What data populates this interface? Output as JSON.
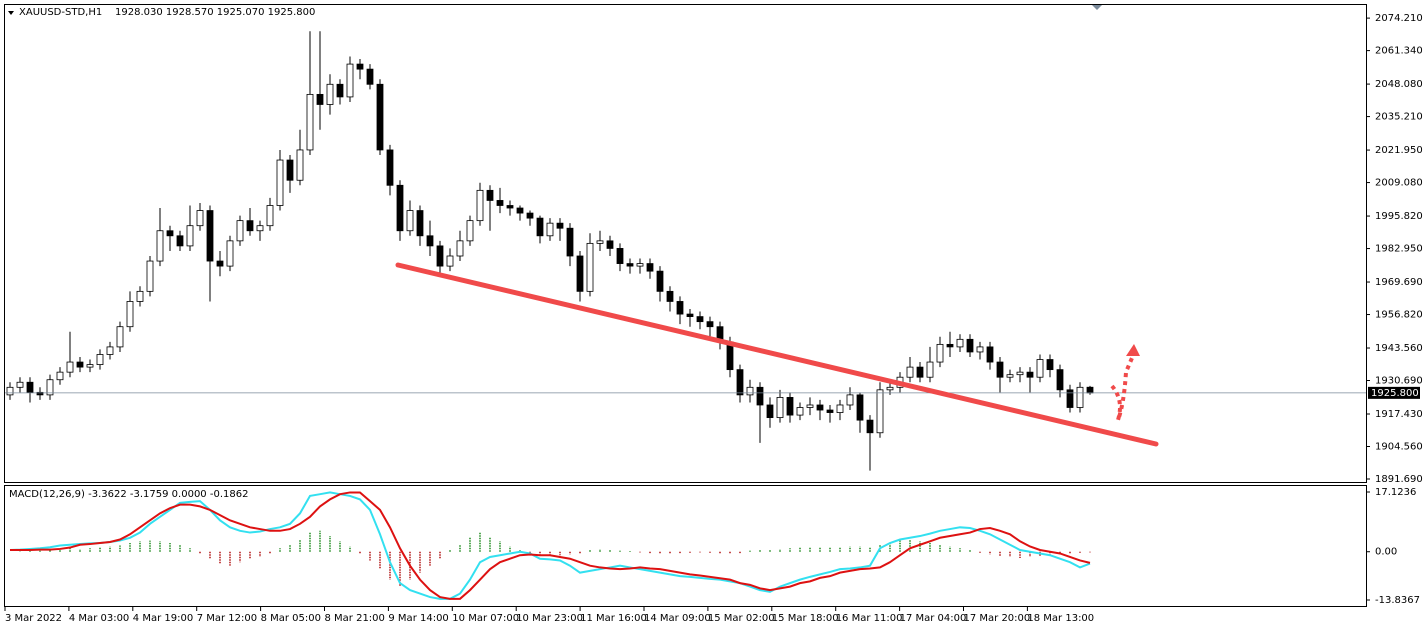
{
  "chart_data": [
    {
      "type": "candlestick",
      "header": {
        "symbol": "XAUUSD-STD,H1",
        "values": "1928.030 1928.570 1925.070 1925.800"
      },
      "categories": [
        "3 Mar 2022",
        "4 Mar 03:00",
        "4 Mar 19:00",
        "7 Mar 12:00",
        "8 Mar 05:00",
        "8 Mar 21:00",
        "9 Mar 14:00",
        "10 Mar 07:00",
        "10 Mar 23:00",
        "11 Mar 16:00",
        "14 Mar 09:00",
        "15 Mar 02:00",
        "15 Mar 18:00",
        "16 Mar 11:00",
        "17 Mar 04:00",
        "17 Mar 20:00",
        "18 Mar 13:00"
      ],
      "open": [
        1925,
        1928,
        1930,
        1926,
        1925,
        1931,
        1934,
        1938,
        1936,
        1937,
        1941,
        1944,
        1952,
        1962,
        1966,
        1978,
        1990,
        1988,
        1984,
        1992,
        1998,
        1978,
        1976,
        1986,
        1994,
        1990,
        1992,
        2000,
        2018,
        2010,
        2022,
        2044,
        2040,
        2048,
        2043,
        2056,
        2054,
        2048,
        2022,
        2008,
        1990,
        1998,
        1988,
        1984,
        1976,
        1980,
        1986,
        1994,
        2006,
        2002,
        2000,
        1999,
        1997,
        1995,
        1988,
        1993,
        1991,
        1980,
        1966,
        1985,
        1986,
        1983,
        1977,
        1976,
        1977,
        1974,
        1966,
        1962,
        1957,
        1956,
        1954,
        1952,
        1946,
        1935,
        1925,
        1928,
        1921,
        1916,
        1924,
        1917,
        1920,
        1921,
        1919,
        1918,
        1921,
        1925,
        1915,
        1910,
        1927,
        1928,
        1932,
        1936,
        1932,
        1938,
        1945,
        1944,
        1947,
        1942,
        1944,
        1938,
        1932,
        1933,
        1934,
        1932,
        1939,
        1935,
        1927,
        1920,
        1928.03
      ],
      "high": [
        1930,
        1932,
        1932,
        1928,
        1933,
        1936,
        1950,
        1940,
        1939,
        1943,
        1946,
        1954,
        1966,
        1968,
        1980,
        1999,
        1992,
        1990,
        2000,
        2001,
        2000,
        1982,
        1988,
        1996,
        1999,
        1994,
        2003,
        2022,
        2020,
        2030,
        2069,
        2069,
        2052,
        2050,
        2059,
        2058,
        2056,
        2050,
        2024,
        2010,
        2002,
        2000,
        1994,
        1986,
        1983,
        1990,
        1996,
        2009,
        2008,
        2007,
        2002,
        2000,
        1998,
        1996,
        1995,
        1995,
        1993,
        1982,
        1989,
        1990,
        1988,
        1985,
        1979,
        1979,
        1979,
        1976,
        1968,
        1964,
        1959,
        1958,
        1956,
        1954,
        1948,
        1937,
        1931,
        1930,
        1924,
        1927,
        1926,
        1922,
        1924,
        1923,
        1921,
        1923,
        1928,
        1926,
        1917,
        1930,
        1931,
        1934,
        1940,
        1938,
        1944,
        1948,
        1950,
        1949,
        1949,
        1946,
        1946,
        1940,
        1935,
        1936,
        1936,
        1941,
        1941,
        1937,
        1929,
        1930,
        1928.57
      ],
      "low": [
        1923,
        1926,
        1922,
        1923,
        1923,
        1929,
        1932,
        1934,
        1934,
        1935,
        1939,
        1942,
        1950,
        1960,
        1964,
        1976,
        1982,
        1982,
        1982,
        1990,
        1962,
        1972,
        1974,
        1984,
        1988,
        1986,
        1990,
        1998,
        2005,
        2008,
        2020,
        2030,
        2036,
        2040,
        2041,
        2050,
        2046,
        2020,
        2004,
        1986,
        1988,
        1984,
        1980,
        1972,
        1974,
        1978,
        1984,
        1992,
        1990,
        1997,
        1996,
        1994,
        1992,
        1985,
        1986,
        1986,
        1976,
        1962,
        1964,
        1982,
        1980,
        1974,
        1973,
        1973,
        1971,
        1962,
        1958,
        1953,
        1952,
        1951,
        1948,
        1943,
        1932,
        1922,
        1922,
        1906,
        1912,
        1914,
        1914,
        1915,
        1917,
        1915,
        1914,
        1915,
        1919,
        1910,
        1895,
        1908,
        1925,
        1926,
        1930,
        1930,
        1930,
        1936,
        1940,
        1942,
        1940,
        1939,
        1935,
        1926,
        1930,
        1930,
        1926,
        1930,
        1932,
        1924,
        1918,
        1918,
        1925.07
      ],
      "close": [
        1928,
        1930,
        1926,
        1925,
        1931,
        1934,
        1938,
        1936,
        1937,
        1941,
        1944,
        1952,
        1962,
        1966,
        1978,
        1990,
        1988,
        1984,
        1992,
        1998,
        1978,
        1976,
        1986,
        1994,
        1990,
        1992,
        2000,
        2018,
        2010,
        2022,
        2044,
        2040,
        2048,
        2043,
        2056,
        2054,
        2048,
        2022,
        2008,
        1990,
        1998,
        1988,
        1984,
        1976,
        1980,
        1986,
        1994,
        2006,
        2002,
        2000,
        1999,
        1997,
        1995,
        1988,
        1993,
        1991,
        1980,
        1966,
        1985,
        1986,
        1983,
        1977,
        1976,
        1977,
        1974,
        1966,
        1962,
        1957,
        1956,
        1954,
        1952,
        1946,
        1935,
        1925,
        1928,
        1921,
        1916,
        1924,
        1917,
        1920,
        1921,
        1919,
        1918,
        1921,
        1925,
        1915,
        1910,
        1927,
        1928,
        1932,
        1936,
        1932,
        1938,
        1945,
        1944,
        1947,
        1942,
        1944,
        1938,
        1932,
        1933,
        1934,
        1932,
        1939,
        1935,
        1927,
        1920,
        1928,
        1925.8
      ],
      "up_color": "#ffffff",
      "down_color": "#000000",
      "wick_color": "#000000",
      "current_price": {
        "value": 1925.8,
        "label": "1925.800"
      },
      "ylim": [
        1890.5,
        2079.4
      ],
      "yticks": [
        {
          "value": 2074.21,
          "label": "2074.210"
        },
        {
          "value": 2061.34,
          "label": "2061.340"
        },
        {
          "value": 2048.08,
          "label": "2048.080"
        },
        {
          "value": 2035.21,
          "label": "2035.210"
        },
        {
          "value": 2021.95,
          "label": "2021.950"
        },
        {
          "value": 2009.08,
          "label": "2009.080"
        },
        {
          "value": 1995.82,
          "label": "1995.820"
        },
        {
          "value": 1982.95,
          "label": "1982.950"
        },
        {
          "value": 1969.69,
          "label": "1969.690"
        },
        {
          "value": 1956.82,
          "label": "1956.820"
        },
        {
          "value": 1943.56,
          "label": "1943.560"
        },
        {
          "value": 1930.69,
          "label": "1930.690"
        },
        {
          "value": 1917.43,
          "label": "1917.430"
        },
        {
          "value": 1904.56,
          "label": "1904.560"
        },
        {
          "value": 1891.69,
          "label": "1891.690"
        }
      ]
    },
    {
      "type": "macd",
      "header": "MACD(12,26,9) -3.3622 -3.1759 0.0000 -0.1862",
      "series": [
        {
          "color": "#33e0f0",
          "values": [
            0.5,
            0.6,
            0.8,
            1,
            1.3,
            1.8,
            2,
            2.2,
            2.4,
            2.5,
            2.8,
            3.2,
            4,
            5.5,
            8,
            10,
            12,
            14,
            14.3,
            14.5,
            12,
            9,
            7,
            6,
            5.5,
            5.8,
            6.5,
            7,
            8,
            11,
            16,
            16.5,
            17,
            16.5,
            16,
            15,
            12,
            5,
            -3,
            -9,
            -11,
            -12,
            -13,
            -13.5,
            -13.5,
            -12,
            -8,
            -3,
            -1.5,
            -1,
            -0.5,
            0,
            -0.5,
            -2,
            -2.2,
            -2.5,
            -4,
            -6,
            -5.5,
            -5,
            -4.5,
            -4,
            -4.5,
            -5,
            -5.5,
            -6,
            -6.5,
            -7,
            -7.2,
            -7.5,
            -7.8,
            -8,
            -8.5,
            -9,
            -10,
            -11,
            -11.5,
            -10,
            -9,
            -8,
            -7.2,
            -6.5,
            -5.8,
            -5,
            -4.8,
            -4.5,
            -4,
            1,
            2.5,
            3.5,
            4,
            4.5,
            5.2,
            6,
            6.5,
            7,
            6.8,
            6,
            5,
            3.5,
            2,
            0.5,
            0,
            -0.5,
            -1,
            -2,
            -3,
            -4.5,
            -3.4
          ]
        },
        {
          "color": "#dd1111",
          "values": [
            0.5,
            0.5,
            0.5,
            0.6,
            0.6,
            0.8,
            1.2,
            2,
            2.2,
            2.5,
            2.8,
            3.5,
            5,
            7,
            9,
            11,
            12.5,
            13.5,
            13.5,
            13,
            12,
            10.5,
            9,
            8,
            7,
            6.5,
            6,
            6,
            6.5,
            8,
            10,
            13,
            15,
            16.5,
            17,
            17,
            14.5,
            12,
            7,
            1,
            -4,
            -8,
            -11,
            -13,
            -13.5,
            -13.5,
            -11,
            -8,
            -5,
            -3,
            -2,
            -1,
            -0.8,
            -1,
            -1,
            -1.5,
            -2,
            -3,
            -4,
            -4.5,
            -4.8,
            -5,
            -4.8,
            -4.5,
            -4.8,
            -5,
            -5.5,
            -6,
            -6.5,
            -6.8,
            -7.2,
            -7.6,
            -8,
            -9,
            -9.5,
            -10.5,
            -11,
            -10.5,
            -10,
            -9,
            -8.5,
            -7.5,
            -7,
            -6,
            -5.5,
            -5,
            -4.8,
            -4.5,
            -3,
            -1,
            1,
            2,
            3,
            4,
            4.5,
            5,
            5.5,
            6.5,
            6.8,
            6,
            5,
            3,
            1.5,
            0.5,
            0,
            -0.5,
            -1.5,
            -2.5,
            -3.2
          ]
        }
      ],
      "histogram": {
        "up_color": "#1f8a1f",
        "down_color": "#b01010",
        "values": [
          0,
          0.1,
          0.2,
          0.3,
          0.5,
          0.8,
          1,
          0.8,
          1,
          1.2,
          1.5,
          1.8,
          2.5,
          3,
          3.2,
          3,
          2.5,
          2,
          1,
          -0.5,
          -2,
          -3.5,
          -4,
          -3,
          -2,
          -1.5,
          -0.5,
          1,
          2,
          3.5,
          5.5,
          6,
          4.5,
          3,
          1.5,
          -0.5,
          -2.5,
          -5,
          -8,
          -10,
          -8,
          -6,
          -4,
          -2,
          0.5,
          2,
          4,
          5.5,
          4,
          3,
          1.5,
          0.5,
          -0.5,
          -1,
          -1.2,
          -1,
          -0.8,
          -0.5,
          0.5,
          0.8,
          0.5,
          0.3,
          0.2,
          -0.2,
          -0.4,
          -0.5,
          -0.5,
          -0.4,
          -0.3,
          -0.2,
          -0.3,
          -0.5,
          -0.5,
          -0.4,
          0.3,
          0.5,
          0.6,
          0.8,
          1,
          1.2,
          1.2,
          1.3,
          1.3,
          1.4,
          1.5,
          1.5,
          1.2,
          2,
          2.8,
          3.2,
          3.5,
          3,
          2.5,
          2,
          1.5,
          1,
          0.5,
          -0.3,
          -0.8,
          -1.2,
          -1.5,
          -1.8,
          -1.5,
          -1.2,
          -1,
          -0.8,
          -0.5,
          -0.3,
          -0.1862
        ]
      },
      "ylim": [
        -15.56,
        18.56
      ],
      "yticks": [
        {
          "value": 17.1236,
          "label": "17.1236"
        },
        {
          "value": 0,
          "label": "0.00"
        },
        {
          "value": -13.8367,
          "label": "-13.8367"
        }
      ]
    }
  ]
}
